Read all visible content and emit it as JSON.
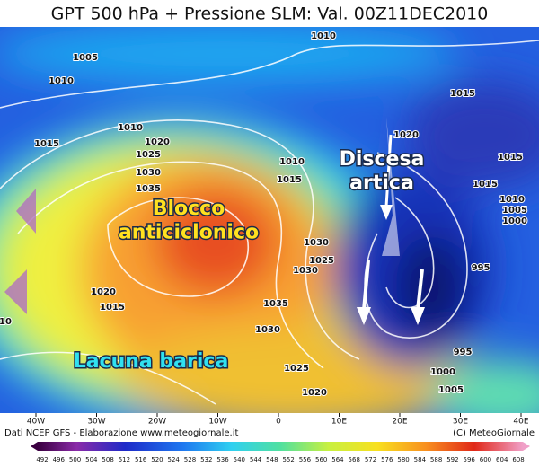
{
  "header": {
    "title": "GPT 500 hPa + Pressione SLM: Val. 00Z11DEC2010"
  },
  "annotations": [
    "Discesa artica",
    "Blocco anticiclonico",
    "Lacuna barica"
  ],
  "isobar_labels": [
    "1010",
    "1005",
    "1010",
    "1015",
    "1010",
    "1020",
    "1025",
    "1015",
    "1020",
    "1015",
    "1030",
    "1010",
    "1015",
    "1035",
    "1015",
    "1010",
    "1005",
    "1000",
    "1030",
    "1025",
    "1030",
    "995",
    "1020",
    "1015",
    "10",
    "1035",
    "1030",
    "995",
    "1000",
    "1025",
    "1020",
    "1005"
  ],
  "longitudes": [
    "40W",
    "30W",
    "20W",
    "10W",
    "0",
    "10E",
    "20E",
    "30E",
    "40E"
  ],
  "footer": {
    "source": "Dati NCEP GFS - Elaborazione www.meteogiornale.it",
    "copyright": "(C) MeteoGiornale"
  },
  "color_scale": [
    492,
    496,
    500,
    504,
    508,
    512,
    516,
    520,
    524,
    528,
    532,
    536,
    540,
    544,
    548,
    552,
    556,
    560,
    564,
    568,
    572,
    576,
    580,
    584,
    588,
    592,
    596,
    600,
    604,
    608
  ]
}
